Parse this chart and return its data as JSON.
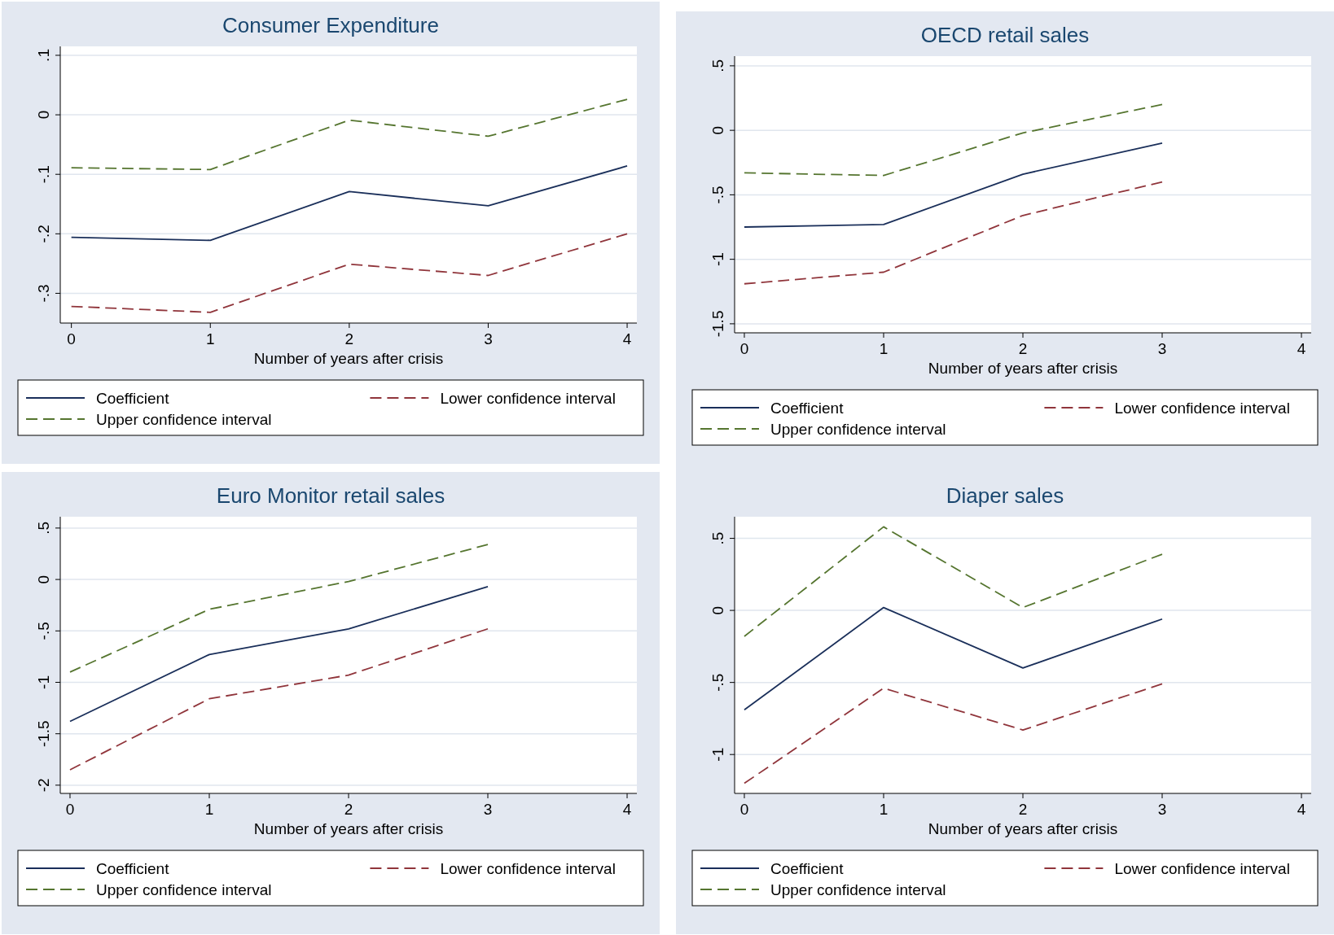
{
  "chart_data": [
    {
      "type": "line",
      "title": "Consumer Expenditure",
      "xlabel": "Number of years after crisis",
      "x": [
        0,
        1,
        2,
        3,
        4
      ],
      "xlim": [
        -0.08,
        4.07
      ],
      "xticks": [
        0,
        1,
        2,
        3,
        4
      ],
      "ylim": [
        -0.35,
        0.115
      ],
      "yticks": [
        {
          "value": 0.1,
          "label": ".1"
        },
        0,
        {
          "value": -0.1,
          "label": "-.1"
        },
        {
          "value": -0.2,
          "label": "-.2"
        },
        {
          "value": -0.3,
          "label": "-.3"
        }
      ],
      "grid": "y",
      "legend": "bottom",
      "series": [
        {
          "name": "Coefficient",
          "color": "#1a2f5a",
          "line_style": "solid",
          "values": [
            -0.206,
            -0.211,
            -0.129,
            -0.153,
            -0.086
          ]
        },
        {
          "name": "Lower confidence interval",
          "color": "#90353b",
          "line_style": "dashed",
          "values": [
            -0.322,
            -0.332,
            -0.251,
            -0.27,
            -0.2
          ]
        },
        {
          "name": "Upper confidence interval",
          "color": "#55752f",
          "line_style": "dashed",
          "values": [
            -0.089,
            -0.092,
            -0.009,
            -0.036,
            0.026
          ]
        }
      ]
    },
    {
      "type": "line",
      "title": "OECD retail sales",
      "xlabel": "Number of years after crisis",
      "x": [
        0,
        1,
        2,
        3
      ],
      "xlim": [
        -0.07,
        4.07
      ],
      "xticks": [
        0,
        1,
        2,
        3,
        4
      ],
      "ylim": [
        -1.57,
        0.575
      ],
      "yticks": [
        {
          "value": 0.5,
          "label": ".5"
        },
        0,
        {
          "value": -0.5,
          "label": "-.5"
        },
        -1,
        -1.5
      ],
      "grid": "y",
      "legend": "bottom",
      "series": [
        {
          "name": "Coefficient",
          "color": "#1a2f5a",
          "line_style": "solid",
          "values": [
            -0.75,
            -0.73,
            -0.34,
            -0.1
          ]
        },
        {
          "name": "Lower confidence interval",
          "color": "#90353b",
          "line_style": "dashed",
          "values": [
            -1.19,
            -1.1,
            -0.66,
            -0.4
          ]
        },
        {
          "name": "Upper confidence interval",
          "color": "#55752f",
          "line_style": "dashed",
          "values": [
            -0.33,
            -0.35,
            -0.02,
            0.2
          ]
        }
      ]
    },
    {
      "type": "line",
      "title": "Euro Monitor retail sales",
      "xlabel": "Number of years after crisis",
      "x": [
        0,
        1,
        2,
        3
      ],
      "xlim": [
        -0.07,
        4.07
      ],
      "xticks": [
        0,
        1,
        2,
        3,
        4
      ],
      "ylim": [
        -2.08,
        0.61
      ],
      "yticks": [
        {
          "value": 0.5,
          "label": ".5"
        },
        0,
        {
          "value": -0.5,
          "label": "-.5"
        },
        -1,
        -1.5,
        -2
      ],
      "grid": "y",
      "legend": "bottom",
      "series": [
        {
          "name": "Coefficient",
          "color": "#1a2f5a",
          "line_style": "solid",
          "values": [
            -1.38,
            -0.73,
            -0.48,
            -0.07
          ]
        },
        {
          "name": "Lower confidence interval",
          "color": "#90353b",
          "line_style": "dashed",
          "values": [
            -1.85,
            -1.16,
            -0.93,
            -0.48
          ]
        },
        {
          "name": "Upper confidence interval",
          "color": "#55752f",
          "line_style": "dashed",
          "values": [
            -0.9,
            -0.29,
            -0.02,
            0.34
          ]
        }
      ]
    },
    {
      "type": "line",
      "title": "Diaper sales",
      "xlabel": "Number of years after crisis",
      "x": [
        0,
        1,
        2,
        3
      ],
      "xlim": [
        -0.07,
        4.07
      ],
      "xticks": [
        0,
        1,
        2,
        3,
        4
      ],
      "ylim": [
        -1.27,
        0.65
      ],
      "yticks": [
        {
          "value": 0.5,
          "label": ".5"
        },
        0,
        {
          "value": -0.5,
          "label": "-.5"
        },
        -1
      ],
      "grid": "y",
      "legend": "bottom",
      "series": [
        {
          "name": "Coefficient",
          "color": "#1a2f5a",
          "line_style": "solid",
          "values": [
            -0.69,
            0.02,
            -0.4,
            -0.06
          ]
        },
        {
          "name": "Lower confidence interval",
          "color": "#90353b",
          "line_style": "dashed",
          "values": [
            -1.2,
            -0.54,
            -0.83,
            -0.51
          ]
        },
        {
          "name": "Upper confidence interval",
          "color": "#55752f",
          "line_style": "dashed",
          "values": [
            -0.18,
            0.58,
            0.02,
            0.39
          ]
        }
      ]
    }
  ]
}
